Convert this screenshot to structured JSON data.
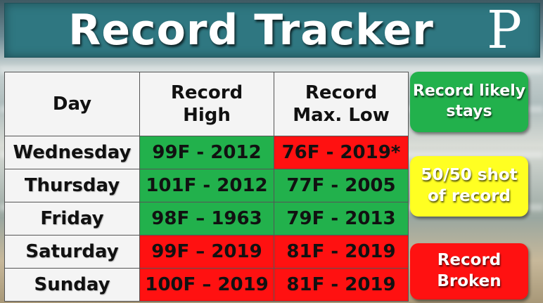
{
  "banner": {
    "title": "Record Tracker",
    "logo": "P"
  },
  "table": {
    "headers": [
      "Day",
      "Record High",
      "Record Max. Low"
    ],
    "rows": [
      {
        "day": "Wednesday",
        "high": "99F - 2012",
        "high_status": "green",
        "low": "76F - 2019*",
        "low_status": "red"
      },
      {
        "day": "Thursday",
        "high": "101F - 2012",
        "high_status": "green",
        "low": "77F - 2005",
        "low_status": "green"
      },
      {
        "day": "Friday",
        "high": "98F – 1963",
        "high_status": "green",
        "low": "79F - 2013",
        "low_status": "green"
      },
      {
        "day": "Saturday",
        "high": "99F – 2019",
        "high_status": "red",
        "low": "81F - 2019",
        "low_status": "red"
      },
      {
        "day": "Sunday",
        "high": "100F – 2019",
        "high_status": "red",
        "low": "81F - 2019",
        "low_status": "red"
      }
    ]
  },
  "legend": {
    "green": "Record likely stays",
    "yellow": "50/50 shot of record",
    "red": "Record Broken"
  },
  "colors": {
    "green": "#22b14c",
    "yellow": "#ffff22",
    "red": "#ff1111",
    "banner": "#2f7781"
  }
}
